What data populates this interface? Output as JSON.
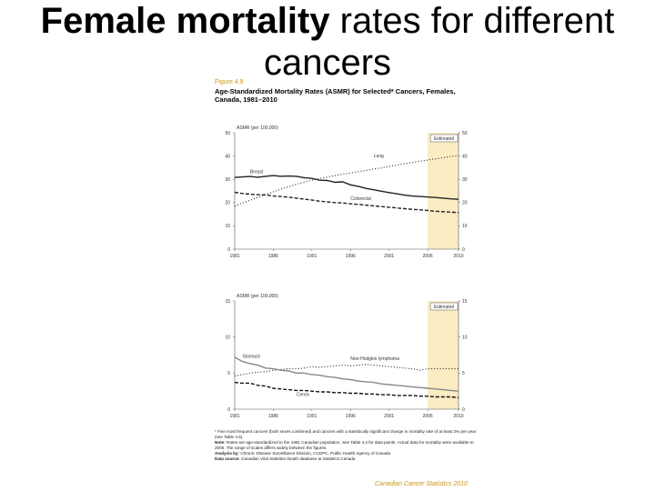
{
  "slide": {
    "title_bold": "Female mortality",
    "title_rest": " rates for different cancers"
  },
  "figure": {
    "label": "Figure 4.9",
    "heading": "Age-Standardized Mortality Rates (ASMR) for Selected* Cancers, Females, Canada, 1981–2010",
    "estimated_label": "Estimated",
    "estimated_shade_color": "#fbecc4",
    "brand": "Canadian Cancer Statistics 2010"
  },
  "notes": [
    {
      "lead": "",
      "text": "* Five most frequent cancers (both sexes combined) and cancers with a statistically significant change in mortality rate of at least 2% per year (see Table 4.6)."
    },
    {
      "lead": "Note:",
      "text": " Rates are age-standardized to the 1991 Canadian population. See Table 4.4 for data points. Actual data for mortality were available to 2006. The range of scales differs widely between the figures."
    },
    {
      "lead": "Analysis by:",
      "text": " Chronic Disease Surveillance Division, CCDPC, Public Health Agency of Canada"
    },
    {
      "lead": "Data source:",
      "text": " Canadian Vital Statistics Death database at Statistics Canada"
    }
  ],
  "chart_data": [
    {
      "type": "line",
      "ylabel": "ASMR (per 100,000)",
      "ylim": [
        0,
        50
      ],
      "yticks": [
        0,
        10,
        20,
        30,
        40,
        50
      ],
      "xlim": [
        1981,
        2010
      ],
      "xtick_labels": [
        "1981",
        "1986",
        "1991",
        "1996",
        "2001",
        "2006",
        "2010"
      ],
      "estimated_from": 2006,
      "x": [
        1981,
        1982,
        1983,
        1984,
        1985,
        1986,
        1987,
        1988,
        1989,
        1990,
        1991,
        1992,
        1993,
        1994,
        1995,
        1996,
        1997,
        1998,
        1999,
        2000,
        2001,
        2002,
        2003,
        2004,
        2005,
        2006,
        2007,
        2008,
        2009,
        2010
      ],
      "series": [
        {
          "name": "Lung",
          "style": "dotted",
          "color": "#222222",
          "values": [
            18.5,
            19.8,
            21.0,
            22.2,
            23.5,
            24.6,
            25.8,
            26.8,
            27.9,
            28.7,
            29.6,
            30.3,
            31.0,
            31.6,
            32.2,
            32.7,
            33.3,
            33.8,
            34.4,
            34.9,
            35.5,
            36.1,
            36.7,
            37.2,
            37.8,
            38.3,
            38.8,
            39.3,
            39.8,
            40.2
          ]
        },
        {
          "name": "Breast",
          "style": "solid",
          "color": "#222222",
          "values": [
            30.8,
            31.0,
            31.2,
            30.9,
            31.3,
            31.6,
            31.3,
            31.4,
            31.3,
            30.7,
            30.4,
            29.6,
            29.5,
            28.7,
            28.9,
            27.6,
            27.0,
            26.1,
            25.5,
            24.9,
            24.3,
            23.8,
            23.2,
            22.8,
            22.6,
            22.4,
            22.2,
            21.9,
            21.6,
            21.4
          ]
        },
        {
          "name": "Colorectal",
          "style": "dashed",
          "color": "#222222",
          "values": [
            24.4,
            23.9,
            23.6,
            23.4,
            23.3,
            22.8,
            22.6,
            22.3,
            21.9,
            21.5,
            21.1,
            20.6,
            20.3,
            20.0,
            19.8,
            19.5,
            19.2,
            18.9,
            18.6,
            18.3,
            18.0,
            17.7,
            17.4,
            17.1,
            16.9,
            16.6,
            16.3,
            16.1,
            15.9,
            15.7
          ]
        }
      ]
    },
    {
      "type": "line",
      "ylabel": "ASMR (per 100,000)",
      "ylim": [
        0,
        15
      ],
      "yticks": [
        0,
        5,
        10,
        15
      ],
      "xlim": [
        1981,
        2010
      ],
      "xtick_labels": [
        "1981",
        "1986",
        "1991",
        "1996",
        "2001",
        "2006",
        "2010"
      ],
      "estimated_from": 2006,
      "x": [
        1981,
        1982,
        1983,
        1984,
        1985,
        1986,
        1987,
        1988,
        1989,
        1990,
        1991,
        1992,
        1993,
        1994,
        1995,
        1996,
        1997,
        1998,
        1999,
        2000,
        2001,
        2002,
        2003,
        2004,
        2005,
        2006,
        2007,
        2008,
        2009,
        2010
      ],
      "series": [
        {
          "name": "Non-Hodgkin lymphoma",
          "style": "dotted",
          "color": "#222222",
          "values": [
            4.6,
            4.8,
            5.0,
            5.1,
            5.2,
            5.4,
            5.5,
            5.6,
            5.6,
            5.7,
            5.9,
            5.8,
            5.9,
            6.0,
            6.1,
            6.0,
            6.1,
            6.2,
            6.1,
            6.0,
            5.9,
            5.8,
            5.7,
            5.6,
            5.4,
            5.6,
            5.6,
            5.6,
            5.6,
            5.6
          ]
        },
        {
          "name": "Stomach",
          "style": "solid",
          "color": "#888888",
          "values": [
            7.2,
            6.6,
            6.3,
            6.1,
            5.7,
            5.6,
            5.4,
            5.3,
            5.0,
            5.0,
            4.8,
            4.7,
            4.5,
            4.4,
            4.2,
            4.1,
            3.9,
            3.8,
            3.7,
            3.5,
            3.4,
            3.3,
            3.2,
            3.1,
            3.0,
            2.9,
            2.8,
            2.7,
            2.6,
            2.5
          ]
        },
        {
          "name": "Cervix",
          "style": "dashed",
          "color": "#111111",
          "values": [
            3.7,
            3.6,
            3.6,
            3.3,
            3.2,
            2.9,
            2.8,
            2.7,
            2.6,
            2.6,
            2.5,
            2.4,
            2.4,
            2.3,
            2.3,
            2.2,
            2.2,
            2.1,
            2.1,
            2.0,
            2.0,
            1.9,
            1.9,
            1.9,
            1.8,
            1.8,
            1.7,
            1.7,
            1.7,
            1.6
          ]
        }
      ]
    }
  ]
}
